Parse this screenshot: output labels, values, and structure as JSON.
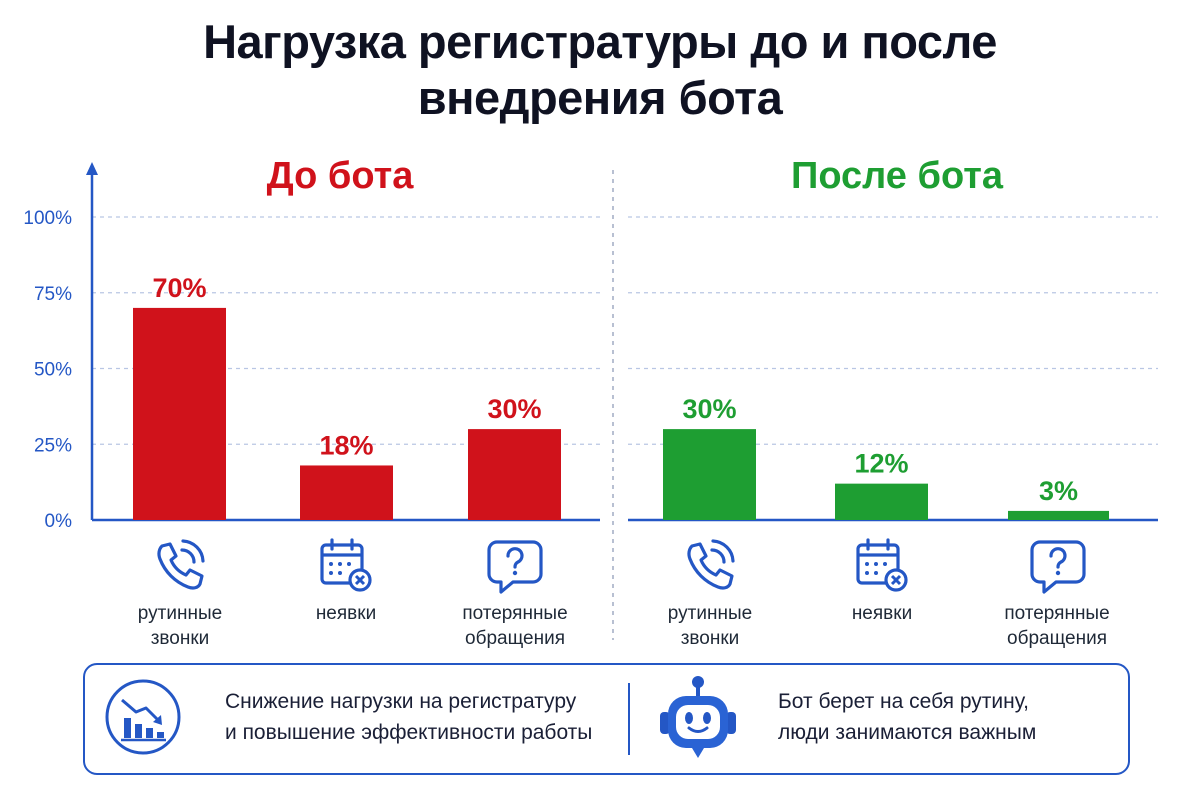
{
  "title_lines": [
    "Нагрузка регистратуры до и после",
    "внедрения бота"
  ],
  "colors": {
    "before": "#d0121b",
    "after": "#1e9e32",
    "axis": "#2457c5",
    "grid": "#b9c6e4"
  },
  "chart_data": {
    "type": "bar",
    "title": "Нагрузка регистратуры до и после внедрения бота",
    "ylim": [
      0,
      100
    ],
    "yticks": [
      "0%",
      "25%",
      "50%",
      "75%",
      "100%"
    ],
    "ytick_values": [
      0,
      25,
      50,
      75,
      100
    ],
    "grid": true,
    "panels": [
      {
        "name": "До бота",
        "color": "#d0121b",
        "categories": [
          "рутинные звонки",
          "неявки",
          "потерянные обращения"
        ],
        "values": [
          70,
          18,
          30
        ],
        "labels": [
          "70%",
          "18%",
          "30%"
        ]
      },
      {
        "name": "После бота",
        "color": "#1e9e32",
        "categories": [
          "рутинные звонки",
          "неявки",
          "потерянные обращения"
        ],
        "values": [
          30,
          12,
          3
        ],
        "labels": [
          "30%",
          "12%",
          "3%"
        ]
      }
    ]
  },
  "categories_display": [
    {
      "icon": "phone-icon",
      "line1": "рутинные",
      "line2": "звонки"
    },
    {
      "icon": "calendar-missed-icon",
      "line1": "неявки",
      "line2": ""
    },
    {
      "icon": "question-bubble-icon",
      "line1": "потерянные",
      "line2": "обращения"
    }
  ],
  "footer": {
    "left": {
      "icon": "chart-decrease-icon",
      "line1": "Снижение нагрузки на регистратуру",
      "line2": "и повышение эффективности работы"
    },
    "right": {
      "icon": "robot-icon",
      "line1": "Бот берет на себя рутину,",
      "line2": "люди занимаются важным"
    }
  }
}
